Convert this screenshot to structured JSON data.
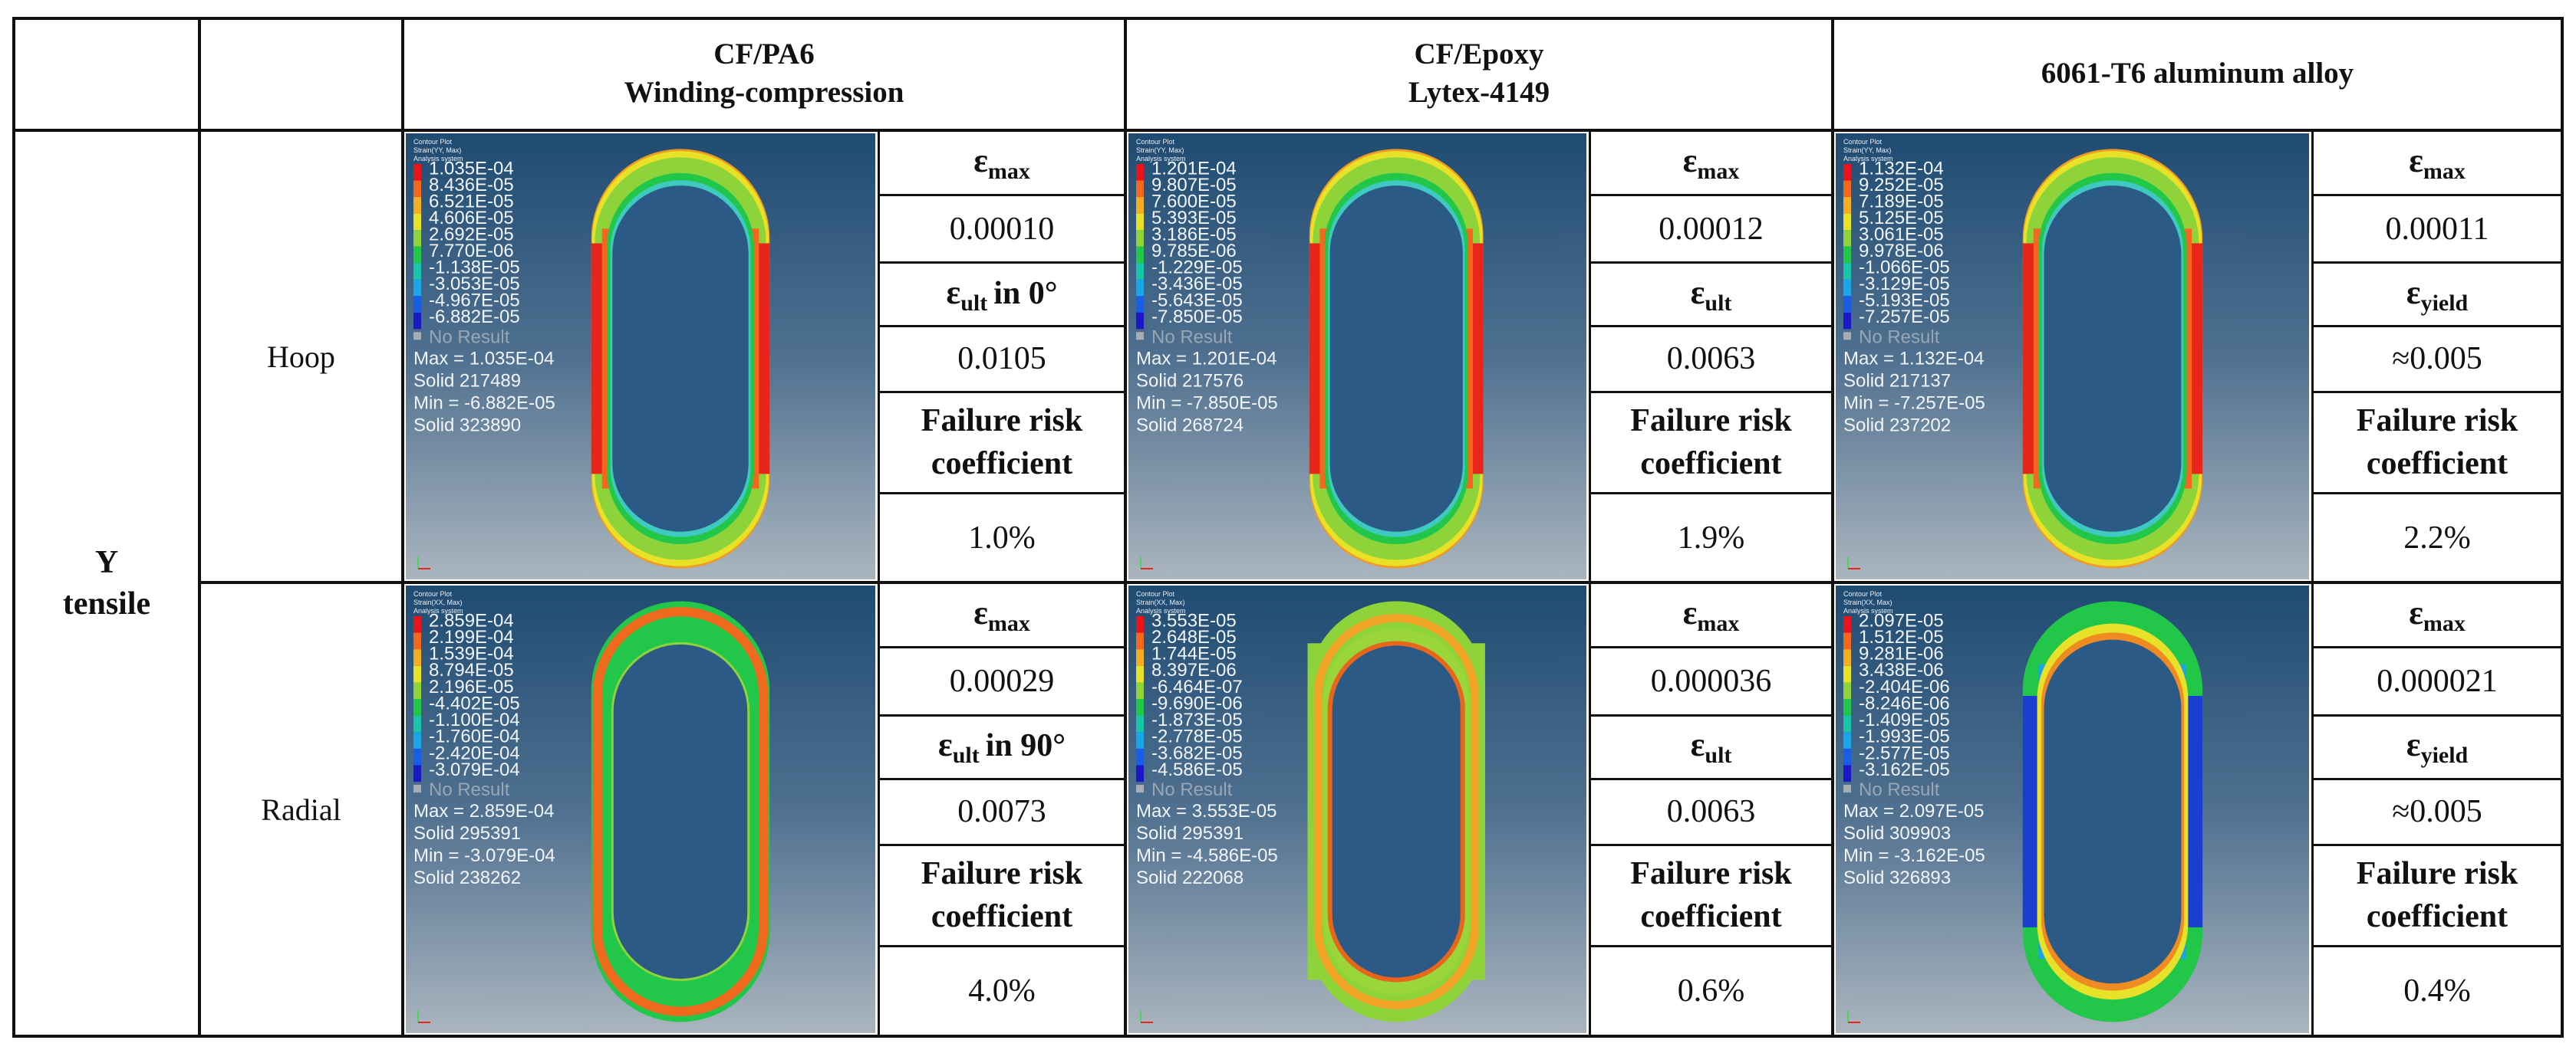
{
  "headers": [
    {
      "line1": "CF/PA6",
      "line2": "Winding-compression"
    },
    {
      "line1": "CF/Epoxy",
      "line2": "Lytex-4149"
    },
    {
      "line1": "6061-T6 aluminum alloy",
      "line2": ""
    }
  ],
  "load_case": {
    "line1": "Y",
    "line2": "tensile"
  },
  "rows": [
    {
      "label": "Hoop"
    },
    {
      "label": "Radial"
    }
  ],
  "labels": {
    "eps": "ε",
    "max_sub": "max",
    "ult_sub": "ult",
    "yield_sub": "yield",
    "failure_line1": "Failure risk",
    "failure_line2": "coefficient"
  },
  "cells": [
    [
      {
        "emax": "0.00010",
        "limit_sub": "ult",
        "limit_suffix": "in 0°",
        "limit_value": "0.0105",
        "risk": "1.0%"
      },
      {
        "emax": "0.00012",
        "limit_sub": "ult",
        "limit_suffix": "",
        "limit_value": "0.0063",
        "risk": "1.9%"
      },
      {
        "emax": "0.00011",
        "limit_sub": "yield",
        "limit_suffix": "",
        "limit_value": "≈0.005",
        "risk": "2.2%"
      }
    ],
    [
      {
        "emax": "0.00029",
        "limit_sub": "ult",
        "limit_suffix": "in 90°",
        "limit_value": "0.0073",
        "risk": "4.0%"
      },
      {
        "emax": "0.000036",
        "limit_sub": "ult",
        "limit_suffix": "",
        "limit_value": "0.0063",
        "risk": "0.6%"
      },
      {
        "emax": "0.000021",
        "limit_sub": "yield",
        "limit_suffix": "",
        "limit_value": "≈0.005",
        "risk": "0.4%"
      }
    ]
  ],
  "plots": [
    {
      "title1": "Contour Plot",
      "title2": "Strain(YY, Max)",
      "title3": "Analysis system",
      "legend": [
        "1.035E-04",
        "8.436E-05",
        "6.521E-05",
        "4.606E-05",
        "2.692E-05",
        "7.770E-06",
        "-1.138E-05",
        "-3.053E-05",
        "-4.967E-05",
        "-6.882E-05"
      ],
      "no_result": "No Result",
      "max": "Max = 1.035E-04",
      "solid_max": "Solid 217489",
      "min": "Min = -6.882E-05",
      "solid_min": "Solid 323890",
      "scheme": "hoop"
    },
    {
      "title1": "Contour Plot",
      "title2": "Strain(YY, Max)",
      "title3": "Analysis system",
      "legend": [
        "1.201E-04",
        "9.807E-05",
        "7.600E-05",
        "5.393E-05",
        "3.186E-05",
        "9.785E-06",
        "-1.229E-05",
        "-3.436E-05",
        "-5.643E-05",
        "-7.850E-05"
      ],
      "no_result": "No Result",
      "max": "Max = 1.201E-04",
      "solid_max": "Solid 217576",
      "min": "Min = -7.850E-05",
      "solid_min": "Solid 268724",
      "scheme": "hoop"
    },
    {
      "title1": "Contour Plot",
      "title2": "Strain(YY, Max)",
      "title3": "Analysis system",
      "legend": [
        "1.132E-04",
        "9.252E-05",
        "7.189E-05",
        "5.125E-05",
        "3.061E-05",
        "9.978E-06",
        "-1.066E-05",
        "-3.129E-05",
        "-5.193E-05",
        "-7.257E-05"
      ],
      "no_result": "No Result",
      "max": "Max = 1.132E-04",
      "solid_max": "Solid 217137",
      "min": "Min = -7.257E-05",
      "solid_min": "Solid 237202",
      "scheme": "hoop"
    },
    {
      "title1": "Contour Plot",
      "title2": "Strain(XX, Max)",
      "title3": "Analysis system",
      "legend": [
        "2.859E-04",
        "2.199E-04",
        "1.539E-04",
        "8.794E-05",
        "2.196E-05",
        "-4.402E-05",
        "-1.100E-04",
        "-1.760E-04",
        "-2.420E-04",
        "-3.079E-04"
      ],
      "no_result": "No Result",
      "max": "Max = 2.859E-04",
      "solid_max": "Solid 295391",
      "min": "Min = -3.079E-04",
      "solid_min": "Solid 238262",
      "scheme": "radial1"
    },
    {
      "title1": "Contour Plot",
      "title2": "Strain(XX, Max)",
      "title3": "Analysis system",
      "legend": [
        "3.553E-05",
        "2.648E-05",
        "1.744E-05",
        "8.397E-06",
        "-6.464E-07",
        "-9.690E-06",
        "-1.873E-05",
        "-2.778E-05",
        "-3.682E-05",
        "-4.586E-05"
      ],
      "no_result": "No Result",
      "max": "Max = 3.553E-05",
      "solid_max": "Solid 295391",
      "min": "Min = -4.586E-05",
      "solid_min": "Solid 222068",
      "scheme": "radial2"
    },
    {
      "title1": "Contour Plot",
      "title2": "Strain(XX, Max)",
      "title3": "Analysis system",
      "legend": [
        "2.097E-05",
        "1.512E-05",
        "9.281E-06",
        "3.438E-06",
        "-2.404E-06",
        "-8.246E-06",
        "-1.409E-05",
        "-1.993E-05",
        "-2.577E-05",
        "-3.162E-05"
      ],
      "no_result": "No Result",
      "max": "Max = 2.097E-05",
      "solid_max": "Solid 309903",
      "min": "Min = -3.162E-05",
      "solid_min": "Solid 326893",
      "scheme": "radial3"
    }
  ],
  "legend_colors": [
    "#e8141a",
    "#f5661f",
    "#f5ad23",
    "#e7e12a",
    "#8fd33a",
    "#22c74a",
    "#19c6a8",
    "#1aa6e6",
    "#1a5de6",
    "#1a18c4"
  ]
}
